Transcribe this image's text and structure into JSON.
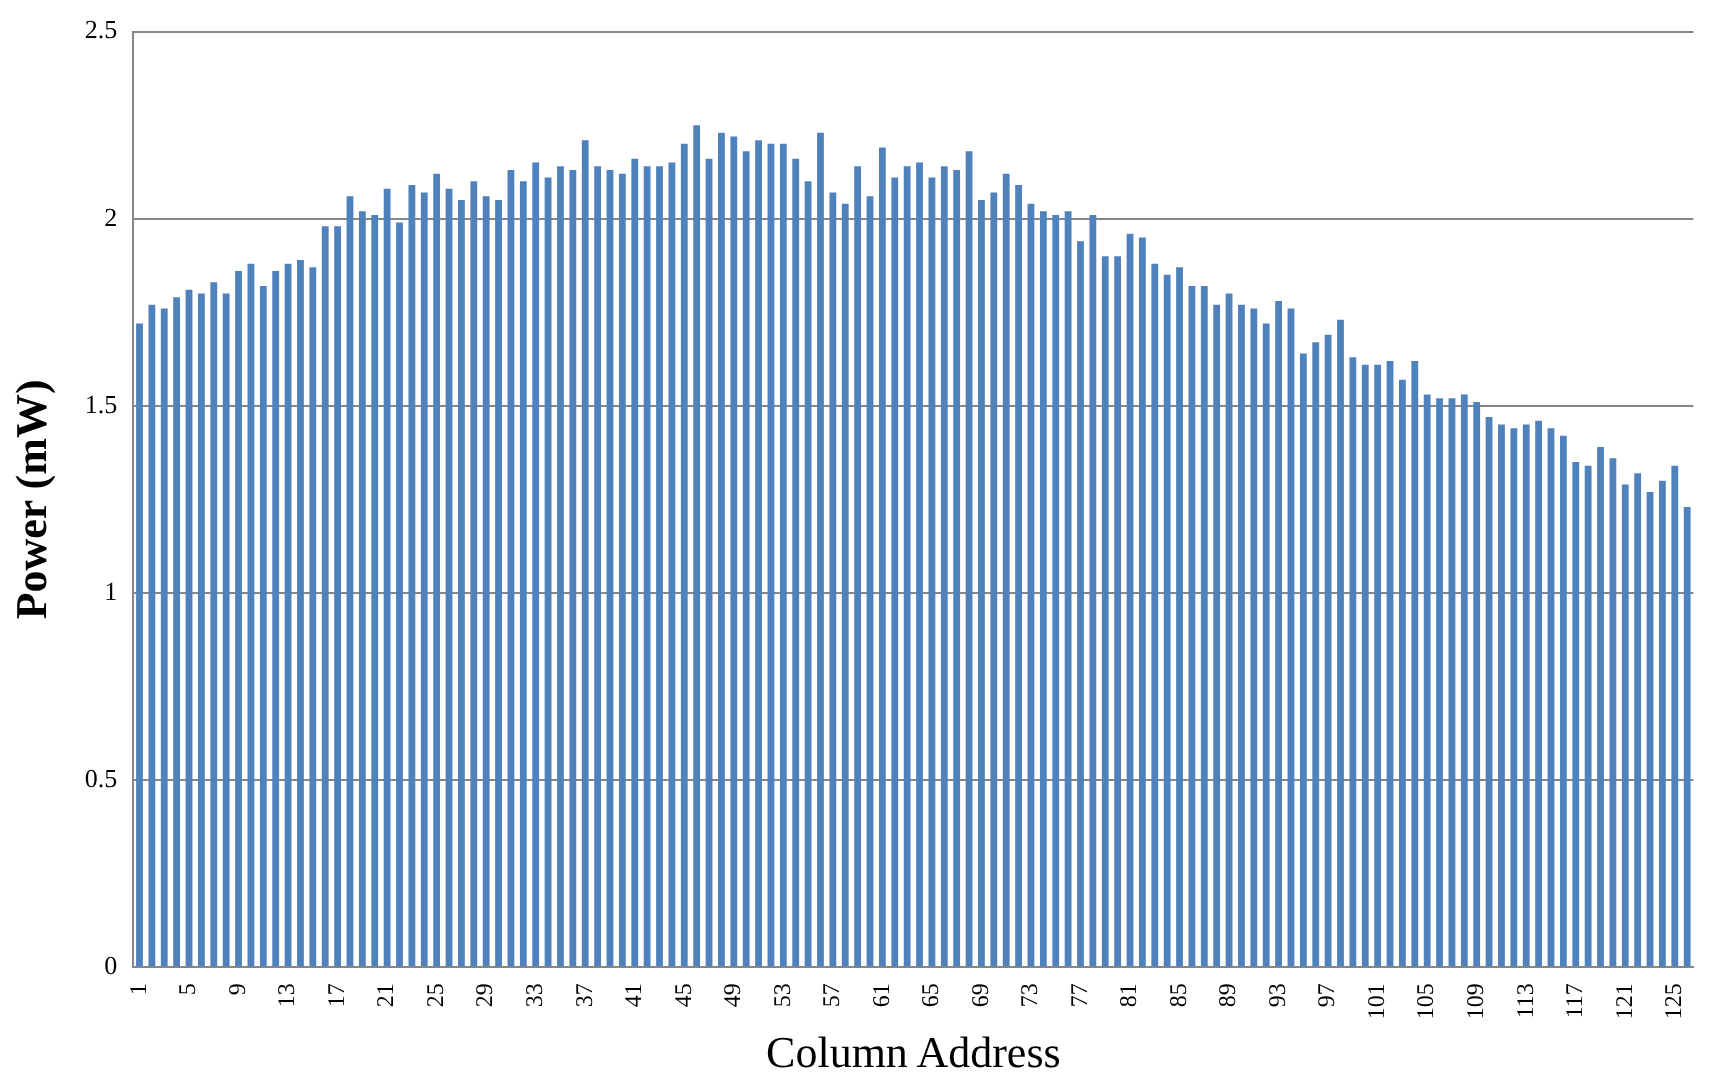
{
  "chart_data": {
    "type": "bar",
    "xlabel": "Column Address",
    "ylabel": "Power (mW)",
    "color": "#4f81bd",
    "categories": [
      "1",
      null,
      null,
      null,
      "5",
      null,
      null,
      null,
      "9",
      null,
      null,
      null,
      "13",
      null,
      null,
      null,
      "17",
      null,
      null,
      null,
      "21",
      null,
      null,
      null,
      "25",
      null,
      null,
      null,
      "29",
      null,
      null,
      null,
      "33",
      null,
      null,
      null,
      "37",
      null,
      null,
      null,
      "41",
      null,
      null,
      null,
      "45",
      null,
      null,
      null,
      "49",
      null,
      null,
      null,
      "53",
      null,
      null,
      null,
      "57",
      null,
      null,
      null,
      "61",
      null,
      null,
      null,
      "65",
      null,
      null,
      null,
      "69",
      null,
      null,
      null,
      "73",
      null,
      null,
      null,
      "77",
      null,
      null,
      null,
      "81",
      null,
      null,
      null,
      "85",
      null,
      null,
      null,
      "89",
      null,
      null,
      null,
      "93",
      null,
      null,
      null,
      "97",
      null,
      null,
      null,
      "101",
      null,
      null,
      null,
      "105",
      null,
      null,
      null,
      "109",
      null,
      null,
      null,
      "113",
      null,
      null,
      null,
      "117",
      null,
      null,
      null,
      "121",
      null,
      null,
      null,
      "125",
      null
    ],
    "values": [
      1.72,
      1.77,
      1.76,
      1.79,
      1.81,
      1.8,
      1.83,
      1.8,
      1.86,
      1.88,
      1.82,
      1.86,
      1.88,
      1.89,
      1.87,
      1.98,
      1.98,
      2.06,
      2.02,
      2.01,
      2.08,
      1.99,
      2.09,
      2.07,
      2.12,
      2.08,
      2.05,
      2.1,
      2.06,
      2.05,
      2.13,
      2.1,
      2.15,
      2.11,
      2.14,
      2.13,
      2.21,
      2.14,
      2.13,
      2.12,
      2.16,
      2.14,
      2.14,
      2.15,
      2.2,
      2.25,
      2.16,
      2.23,
      2.22,
      2.18,
      2.21,
      2.2,
      2.2,
      2.16,
      2.1,
      2.23,
      2.07,
      2.04,
      2.14,
      2.06,
      2.19,
      2.11,
      2.14,
      2.15,
      2.11,
      2.14,
      2.13,
      2.18,
      2.05,
      2.07,
      2.12,
      2.09,
      2.04,
      2.02,
      2.01,
      2.02,
      1.94,
      2.01,
      1.9,
      1.9,
      1.96,
      1.95,
      1.88,
      1.85,
      1.87,
      1.82,
      1.82,
      1.77,
      1.8,
      1.77,
      1.76,
      1.72,
      1.78,
      1.76,
      1.64,
      1.67,
      1.69,
      1.73,
      1.63,
      1.61,
      1.61,
      1.62,
      1.57,
      1.62,
      1.53,
      1.52,
      1.52,
      1.53,
      1.51,
      1.47,
      1.45,
      1.44,
      1.45,
      1.46,
      1.44,
      1.42,
      1.35,
      1.34,
      1.39,
      1.36,
      1.29,
      1.32,
      1.27,
      1.3,
      1.34,
      1.23
    ],
    "ylim": [
      0,
      2.5
    ],
    "yticks": [
      0,
      0.5,
      1,
      1.5,
      2,
      2.5
    ],
    "grid": "y"
  }
}
